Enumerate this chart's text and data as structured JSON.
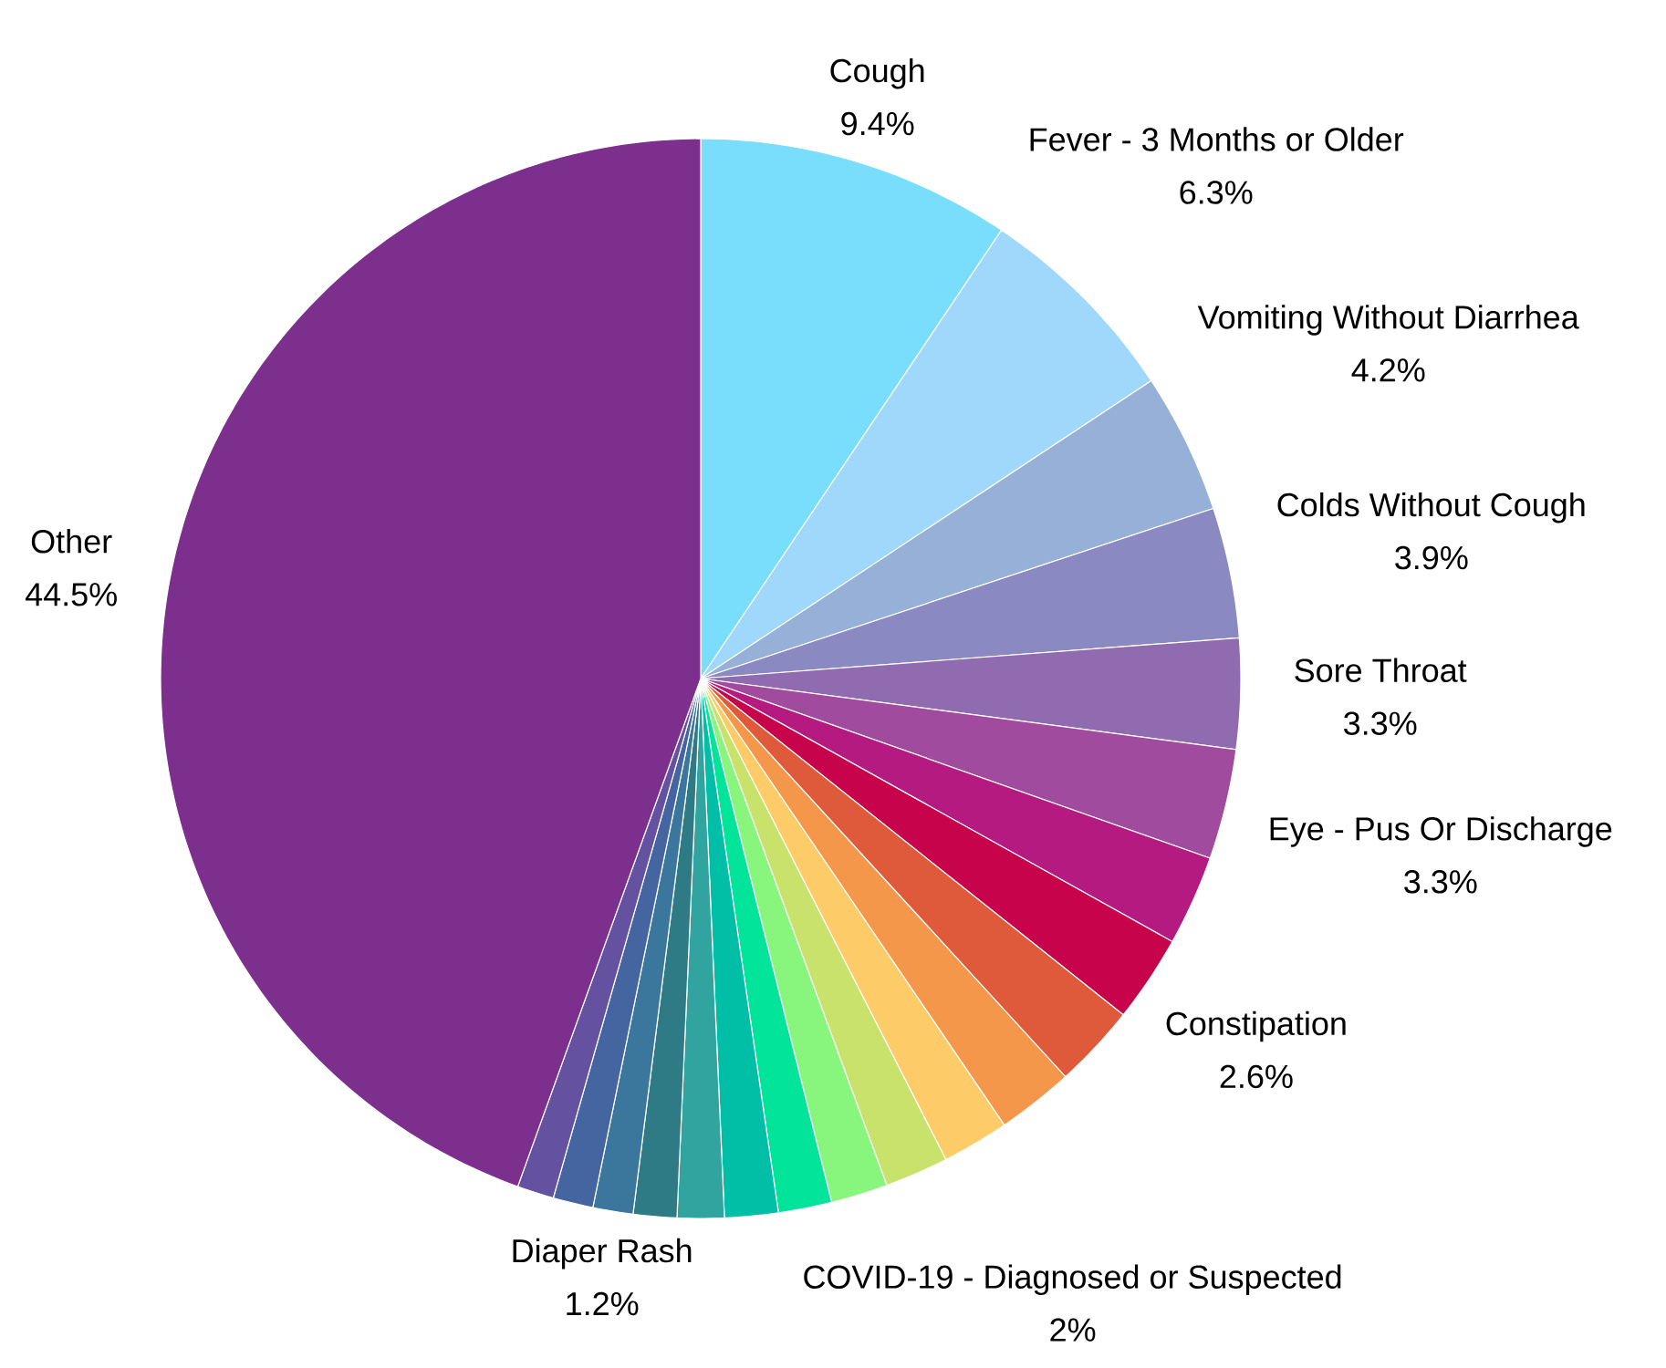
{
  "chart_data": {
    "type": "pie",
    "categories": [
      "Cough",
      "Fever - 3 Months or Older",
      "Vomiting Without Diarrhea",
      "Colds Without Cough",
      "Sore Throat",
      "Eye - Pus Or Discharge",
      null,
      "Constipation",
      null,
      null,
      "COVID-19 - Diagnosed or Suspected",
      null,
      null,
      null,
      null,
      null,
      null,
      "Diaper Rash",
      null,
      null,
      "Other"
    ],
    "values": [
      9.4,
      6.3,
      4.2,
      3.9,
      3.3,
      3.3,
      2.7,
      2.6,
      2.5,
      2.3,
      2,
      1.9,
      1.7,
      1.6,
      1.6,
      1.4,
      1.3,
      1.2,
      1.2,
      1.1,
      44.5
    ],
    "value_labels": [
      "9.4%",
      "6.3%",
      "4.2%",
      "3.9%",
      "3.3%",
      "3.3%",
      null,
      "2.6%",
      null,
      null,
      "2%",
      null,
      null,
      null,
      null,
      null,
      null,
      "1.2%",
      null,
      null,
      "44.5%"
    ],
    "colors": [
      "#78defc",
      "#a0d8fb",
      "#97b0d7",
      "#8a89c1",
      "#916bb0",
      "#a14b9e",
      "#b41a7f",
      "#c7044b",
      "#df5a3b",
      "#f5974a",
      "#fecb69",
      "#c9e26b",
      "#88f67d",
      "#03e49b",
      "#01bfa7",
      "#32a4a0",
      "#2e7b86",
      "#3b779c",
      "#44659f",
      "#6452a1",
      "#7d2f8e"
    ]
  }
}
